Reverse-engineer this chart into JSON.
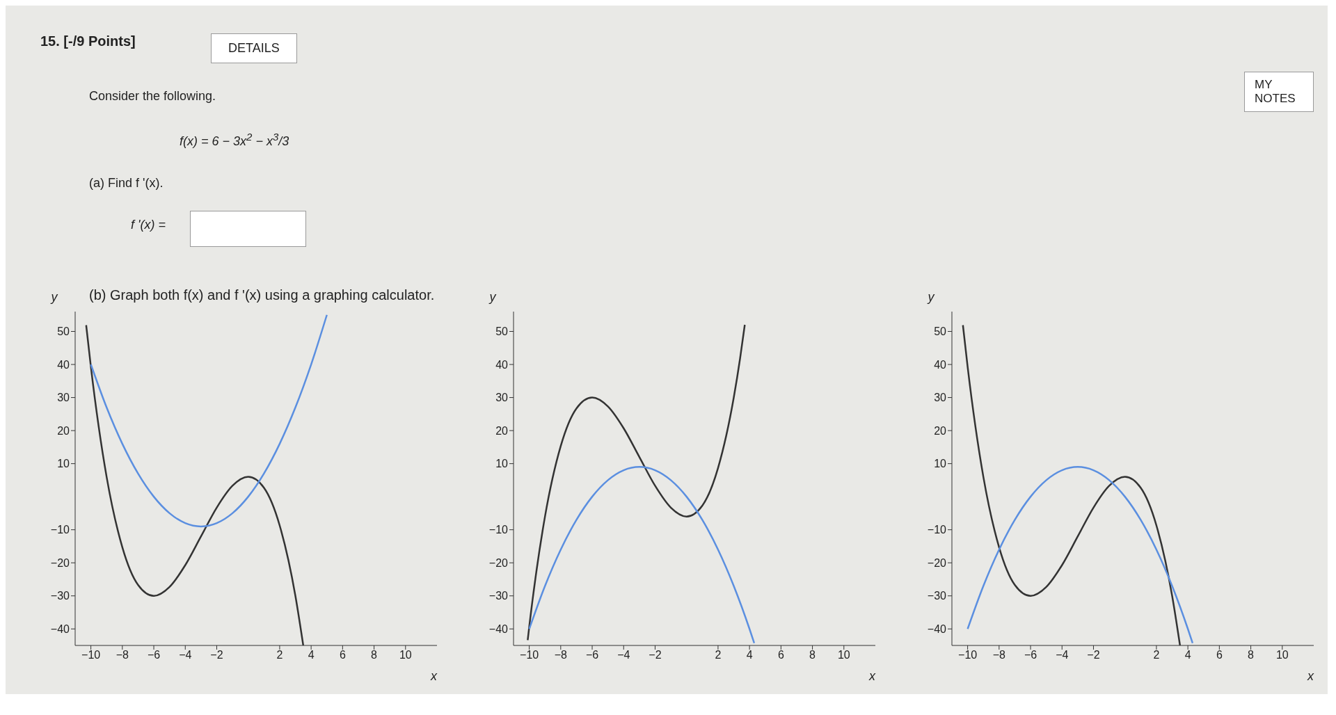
{
  "chart_data": [
    {
      "type": "other",
      "title": "15. [-/9 Points]",
      "annotations": [
        "DETAILS",
        "MY NOTES",
        "Consider the following.",
        "f(x) = 6 − 3x$^{2}$ − x$^{3}$/3",
        "(a) Find f '(x).",
        "f '(x) =",
        "(b) Graph both f(x) and f '(x) using a graphing calculator."
      ]
    },
    {
      "type": "line",
      "xlabel": "x",
      "ylabel": "y",
      "xlim": [
        -11,
        12
      ],
      "ylim": [
        -45,
        56
      ],
      "xticks": [
        -10,
        -8,
        -6,
        -4,
        -2,
        2,
        4,
        6,
        8,
        10
      ],
      "yticks": [
        -40,
        -30,
        -20,
        -10,
        10,
        20,
        30,
        40,
        50
      ],
      "grid": false,
      "legend": false,
      "marker": "none",
      "line_style": "solid",
      "series": [
        {
          "color": "#333333",
          "x": [
            -10.3,
            -10,
            -9,
            -8,
            -7,
            -6,
            -5,
            -4,
            -3,
            -2,
            -1,
            0,
            1,
            2,
            3,
            3.5
          ],
          "values": [
            51.9,
            39.3,
            6,
            -15.3,
            -26.7,
            -30,
            -27.3,
            -20.7,
            -12,
            -3.3,
            3.3,
            6,
            2.7,
            -8.7,
            -30,
            -45
          ]
        },
        {
          "color": "#5b8fe0",
          "x": [
            -10,
            -9,
            -8,
            -7,
            -6,
            -5,
            -4,
            -3,
            -2,
            -1,
            0,
            1,
            2,
            3,
            4,
            5
          ],
          "values": [
            40,
            27,
            16,
            7,
            0,
            -5,
            -8,
            -9,
            -8,
            -5,
            0,
            7,
            16,
            27,
            40,
            55
          ]
        }
      ]
    },
    {
      "type": "line",
      "xlabel": "x",
      "ylabel": "y",
      "xlim": [
        -11,
        12
      ],
      "ylim": [
        -45,
        56
      ],
      "xticks": [
        -10,
        -8,
        -6,
        -4,
        -2,
        2,
        4,
        6,
        8,
        10
      ],
      "yticks": [
        -40,
        -30,
        -20,
        -10,
        10,
        20,
        30,
        40,
        50
      ],
      "grid": false,
      "legend": false,
      "marker": "none",
      "line_style": "solid",
      "series": [
        {
          "color": "#333333",
          "x": [
            -10.1,
            -10,
            -9,
            -8,
            -7,
            -6,
            -5,
            -4,
            -3,
            -2,
            -1,
            0,
            1,
            2,
            3,
            3.4,
            3.7
          ],
          "values": [
            -43.4,
            -39.3,
            -6,
            15.3,
            26.7,
            30,
            27.3,
            20.7,
            12,
            3.3,
            -3.3,
            -6,
            -2.7,
            8.7,
            30,
            41.8,
            52
          ]
        },
        {
          "color": "#5b8fe0",
          "x": [
            -10,
            -9,
            -8,
            -7,
            -6,
            -5,
            -4,
            -3,
            -2,
            -1,
            0,
            1,
            2,
            3,
            4,
            4.3
          ],
          "values": [
            -40,
            -27,
            -16,
            -7,
            0,
            5,
            8,
            9,
            8,
            5,
            0,
            -7,
            -16,
            -27,
            -40,
            -44.3
          ]
        }
      ]
    },
    {
      "type": "line",
      "xlabel": "x",
      "ylabel": "y",
      "xlim": [
        -11,
        12
      ],
      "ylim": [
        -45,
        56
      ],
      "xticks": [
        -10,
        -8,
        -6,
        -4,
        -2,
        2,
        4,
        6,
        8,
        10
      ],
      "yticks": [
        -40,
        -30,
        -20,
        -10,
        10,
        20,
        30,
        40,
        50
      ],
      "grid": false,
      "legend": false,
      "marker": "none",
      "line_style": "solid",
      "series": [
        {
          "color": "#333333",
          "x": [
            -10.3,
            -10,
            -9,
            -8,
            -7,
            -6,
            -5,
            -4,
            -3,
            -2,
            -1,
            0,
            1,
            2,
            3,
            3.5
          ],
          "values": [
            51.9,
            39.3,
            6,
            -15.3,
            -26.7,
            -30,
            -27.3,
            -20.7,
            -12,
            -3.3,
            3.3,
            6,
            2.7,
            -8.7,
            -30,
            -45
          ]
        },
        {
          "color": "#5b8fe0",
          "x": [
            -10,
            -9,
            -8,
            -7,
            -6,
            -5,
            -4,
            -3,
            -2,
            -1,
            0,
            1,
            2,
            3,
            4,
            4.3
          ],
          "values": [
            -40,
            -27,
            -16,
            -7,
            0,
            5,
            8,
            9,
            8,
            5,
            0,
            -7,
            -16,
            -27,
            -40,
            -44.3
          ]
        }
      ]
    }
  ]
}
